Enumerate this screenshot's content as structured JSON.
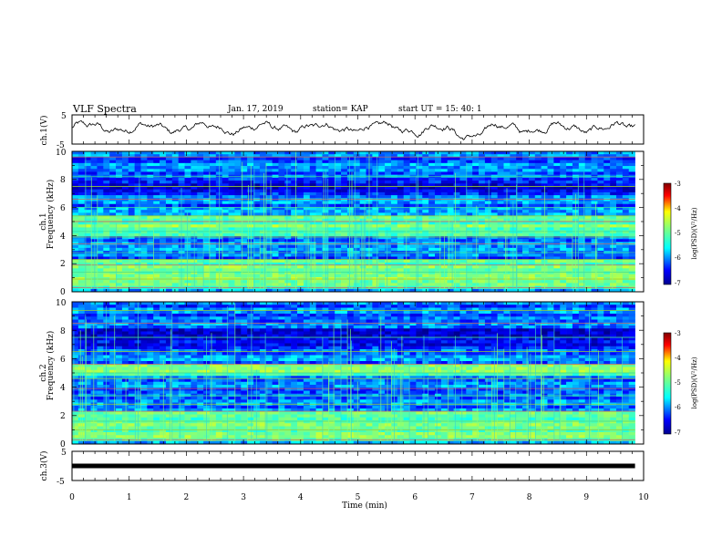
{
  "header": {
    "title": "VLF Spectra",
    "date": "Jan. 17, 2019",
    "station": "station= KAP",
    "start_time": "start  UT =   15: 40: 1"
  },
  "chart_data": [
    {
      "type": "line",
      "name": "ch1-waveform",
      "ylabel": "ch.1(V)",
      "xlim": [
        0,
        10
      ],
      "ylim": [
        -5,
        5
      ],
      "yticks": [
        "5",
        "-5"
      ],
      "data_end_min": 9.85,
      "description_values": {
        "baseline_V": 0.5,
        "amplitude_V": 2.0,
        "dip_at_min": 7.0
      }
    },
    {
      "type": "heatmap",
      "name": "ch1-spectrogram",
      "ylabel": "ch.1\nFrequency (kHz)",
      "ylabel_lines": [
        "ch.1",
        "Frequency (kHz)"
      ],
      "xlim": [
        0,
        10
      ],
      "ylim": [
        0,
        10
      ],
      "yticks": [
        "0",
        "2",
        "4",
        "6",
        "8",
        "10"
      ],
      "colorbar": {
        "label": "log(PSD)(V²/Hz)",
        "range": [
          -7,
          -3
        ],
        "ticks": [
          "-3",
          "-4",
          "-5",
          "-6",
          "-7"
        ]
      },
      "lines_khz": [
        0.3,
        0.9,
        1.4,
        1.9,
        2.3,
        2.8,
        3.4,
        3.9,
        4.3,
        5.0,
        5.4,
        6.0,
        6.6,
        7.5,
        8.2,
        9.6
      ],
      "band_khz": [
        [
          0.2,
          2.3
        ],
        [
          4.0,
          5.5
        ]
      ]
    },
    {
      "type": "heatmap",
      "name": "ch2-spectrogram",
      "ylabel": "ch.2\nFrequency (kHz)",
      "ylabel_lines": [
        "ch.2",
        "Frequency (kHz)"
      ],
      "xlim": [
        0,
        10
      ],
      "ylim": [
        0,
        10
      ],
      "yticks": [
        "0",
        "2",
        "4",
        "6",
        "8",
        "10"
      ],
      "colorbar": {
        "label": "log(PSD)(V²/Hz)",
        "range": [
          -7,
          -3
        ],
        "ticks": [
          "-3",
          "-4",
          "-5",
          "-6",
          "-7"
        ]
      },
      "lines_khz": [
        0.3,
        1.0,
        1.6,
        2.3,
        2.8,
        3.4,
        3.9,
        4.6,
        5.0,
        5.6,
        6.5,
        7.5,
        8.5,
        9.4
      ],
      "band_khz": [
        [
          0.2,
          2.3
        ],
        [
          4.8,
          5.6
        ]
      ]
    },
    {
      "type": "line",
      "name": "ch3-waveform",
      "ylabel": "ch.3(V)",
      "xlabel": "Time (min)",
      "xlim": [
        0,
        10
      ],
      "ylim": [
        -5,
        5
      ],
      "yticks": [
        "5",
        "-5"
      ],
      "xticks": [
        "0",
        "1",
        "2",
        "3",
        "4",
        "5",
        "6",
        "7",
        "8",
        "9",
        "10"
      ],
      "constant_value_V": 0.0,
      "data_end_min": 9.85
    }
  ],
  "colors": {
    "background": "#ffffff",
    "axis": "#000000",
    "colormap": [
      "#00008f",
      "#0000ff",
      "#00ffff",
      "#7fff7f",
      "#ffff00",
      "#ff0000",
      "#800000"
    ]
  }
}
